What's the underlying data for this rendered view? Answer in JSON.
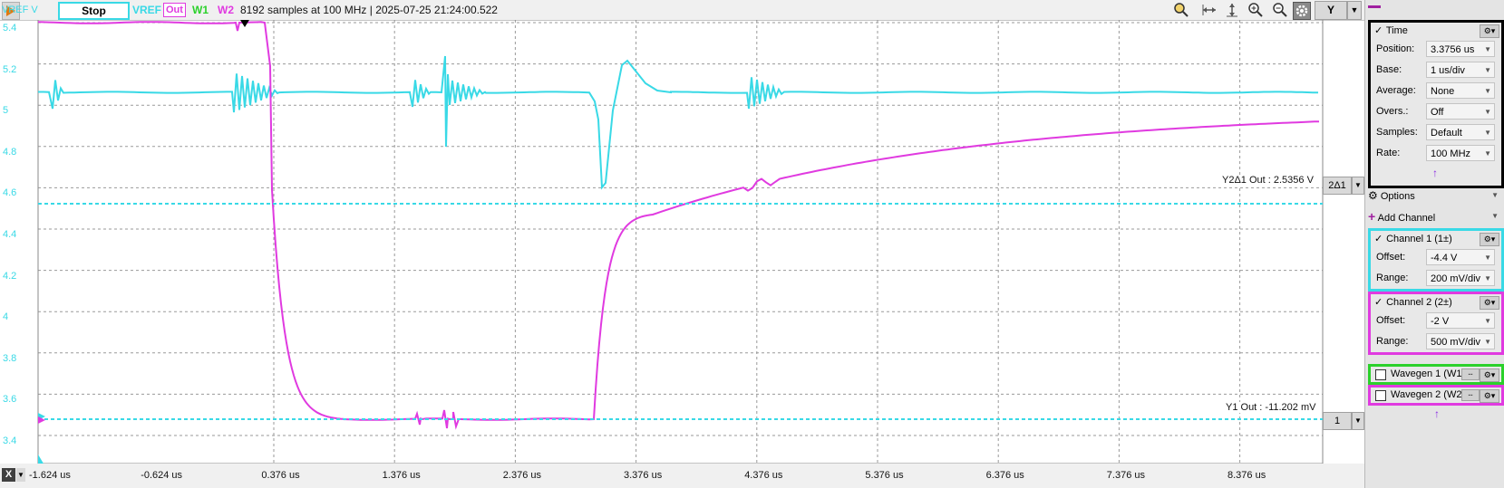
{
  "toolbar": {
    "vref_label": "VREF V",
    "stop_label": "Stop",
    "ch1_tag": "VREF",
    "ch2_tag": "Out",
    "w1_tag": "W1",
    "w2_tag": "W2",
    "info": "8192 samples at 100 MHz | 2025-07-25 21:24:00.522",
    "y_button": "Y"
  },
  "plot": {
    "y_ticks": [
      "5.4",
      "5.2",
      "5",
      "4.8",
      "4.6",
      "4.4",
      "4.2",
      "4",
      "3.8",
      "3.6",
      "3.4"
    ],
    "x_ticks": [
      "-1.624 us",
      "-0.624 us",
      "0.376 us",
      "1.376 us",
      "2.376 us",
      "3.376 us",
      "4.376 us",
      "5.376 us",
      "6.376 us",
      "7.376 us",
      "8.376 us"
    ],
    "x_button": "X",
    "cursor_y2_label": "Y2Δ1 Out : 2.5356 V",
    "cursor_y2_tag": "2Δ1",
    "cursor_y1_label": "Y1 Out : -11.202 mV",
    "cursor_y1_tag": "1",
    "colors": {
      "ch1": "#39d9e6",
      "ch2": "#e03ae0",
      "w1": "#2bd12b",
      "grid": "#9a9a9a"
    }
  },
  "panel": {
    "time": {
      "title": "Time",
      "rows": [
        {
          "label": "Position:",
          "value": "3.3756 us"
        },
        {
          "label": "Base:",
          "value": "1 us/div"
        },
        {
          "label": "Average:",
          "value": "None"
        },
        {
          "label": "Overs.:",
          "value": "Off"
        },
        {
          "label": "Samples:",
          "value": "Default"
        },
        {
          "label": "Rate:",
          "value": "100 MHz"
        }
      ]
    },
    "options_label": "Options",
    "add_channel_label": "Add Channel",
    "channel1": {
      "title": "Channel 1 (1±)",
      "rows": [
        {
          "label": "Offset:",
          "value": "-4.4 V"
        },
        {
          "label": "Range:",
          "value": "200 mV/div"
        }
      ]
    },
    "channel2": {
      "title": "Channel 2 (2±)",
      "rows": [
        {
          "label": "Offset:",
          "value": "-2 V"
        },
        {
          "label": "Range:",
          "value": "500 mV/div"
        }
      ]
    },
    "wavegen1": "Wavegen 1 (W1)",
    "wavegen2": "Wavegen 2 (W2)",
    "check_mark": "✓"
  }
}
